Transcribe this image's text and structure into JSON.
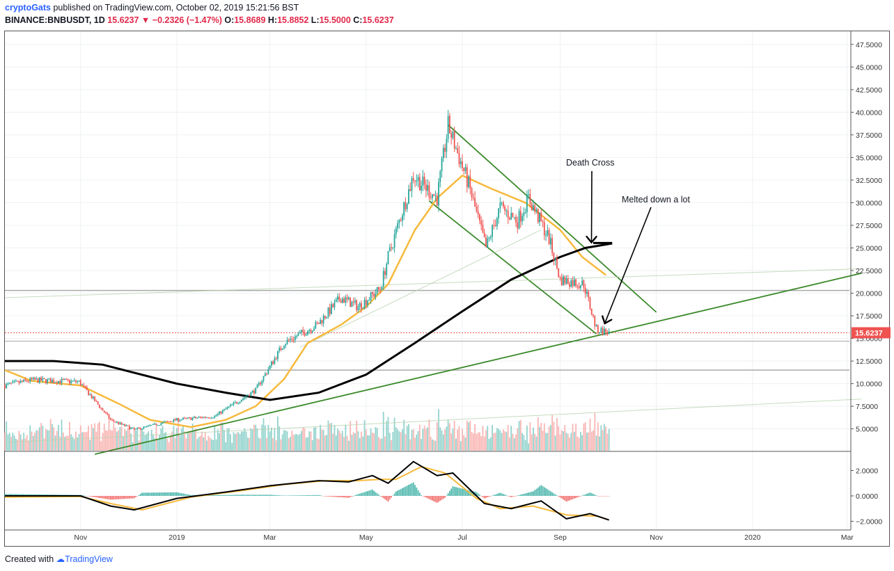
{
  "header": {
    "author": "cryptoGats",
    "published": "published on TradingView.com, October 02, 2019 15:21:56 BST",
    "symbol": "BINANCE:BNBUSDT, 1D",
    "last": "15.6237",
    "change": "−0.2326 (−1.47%)",
    "open_label": "O:",
    "open": "15.8689",
    "high_label": "H:",
    "high": "15.8852",
    "low_label": "L:",
    "low": "15.5000",
    "close_label": "C:",
    "close": "15.6237"
  },
  "footer": {
    "created_with": "Created with",
    "brand": "TradingView"
  },
  "colors": {
    "up": "#26a69a",
    "down": "#ef5350",
    "ma_fast": "#f6b93b",
    "ma_slow": "#000000",
    "trend": "#3a8a2a"
  },
  "chart_data": {
    "type": "candlestick",
    "price_axis": {
      "ticks": [
        5,
        7.5,
        10,
        12.5,
        15,
        17.5,
        20,
        22.5,
        25,
        27.5,
        30,
        32.5,
        35,
        37.5,
        40,
        42.5,
        45,
        47.5
      ],
      "labels": [
        "5.0000",
        "7.5000",
        "10.0000",
        "12.5000",
        "15.0000",
        "17.5000",
        "20.0000",
        "22.5000",
        "25.0000",
        "27.5000",
        "30.0000",
        "32.5000",
        "35.0000",
        "37.5000",
        "40.0000",
        "42.5000",
        "45.0000",
        "47.5000"
      ],
      "last_price_label": "15.6237"
    },
    "time_axis": {
      "labels": [
        "Nov",
        "2019",
        "Mar",
        "May",
        "Jul",
        "Sep",
        "Nov",
        "2020",
        "Mar"
      ]
    },
    "oscillator_axis": {
      "ticks": [
        2,
        0,
        -2
      ],
      "labels": [
        "2.0000",
        "0.0000",
        "−2.0000"
      ]
    },
    "close_keypoints": [
      [
        "2018-09-14",
        9.8
      ],
      [
        "2018-10-01",
        10.4
      ],
      [
        "2018-10-31",
        10.2
      ],
      [
        "2018-11-20",
        6.0
      ],
      [
        "2018-12-05",
        4.9
      ],
      [
        "2018-12-31",
        6.0
      ],
      [
        "2019-01-25",
        6.4
      ],
      [
        "2019-02-20",
        9.3
      ],
      [
        "2019-03-10",
        14.5
      ],
      [
        "2019-03-31",
        16.5
      ],
      [
        "2019-04-15",
        19.5
      ],
      [
        "2019-04-26",
        18.5
      ],
      [
        "2019-05-10",
        20.5
      ],
      [
        "2019-05-15",
        24.0
      ],
      [
        "2019-05-31",
        33.0
      ],
      [
        "2019-06-15",
        30.5
      ],
      [
        "2019-06-22",
        38.5
      ],
      [
        "2019-07-05",
        32.0
      ],
      [
        "2019-07-16",
        25.0
      ],
      [
        "2019-07-25",
        29.5
      ],
      [
        "2019-08-05",
        28.0
      ],
      [
        "2019-08-12",
        30.5
      ],
      [
        "2019-08-25",
        26.0
      ],
      [
        "2019-09-01",
        21.5
      ],
      [
        "2019-09-16",
        21.0
      ],
      [
        "2019-09-24",
        16.0
      ],
      [
        "2019-10-02",
        15.62
      ]
    ],
    "ma_fast_keypoints": [
      [
        "2018-09-14",
        11.5
      ],
      [
        "2018-10-01",
        10.3
      ],
      [
        "2018-11-01",
        9.8
      ],
      [
        "2018-11-25",
        7.8
      ],
      [
        "2018-12-15",
        6.0
      ],
      [
        "2019-01-10",
        5.2
      ],
      [
        "2019-02-01",
        6.0
      ],
      [
        "2019-02-20",
        7.5
      ],
      [
        "2019-03-10",
        10.5
      ],
      [
        "2019-03-25",
        14.5
      ],
      [
        "2019-04-15",
        16.5
      ],
      [
        "2019-05-01",
        18.5
      ],
      [
        "2019-05-15",
        21.0
      ],
      [
        "2019-06-01",
        27.0
      ],
      [
        "2019-06-15",
        30.5
      ],
      [
        "2019-07-01",
        33.0
      ],
      [
        "2019-07-20",
        31.5
      ],
      [
        "2019-08-10",
        30.0
      ],
      [
        "2019-09-01",
        27.0
      ],
      [
        "2019-09-15",
        24.0
      ],
      [
        "2019-09-30",
        22.0
      ]
    ],
    "ma_slow_keypoints": [
      [
        "2018-09-14",
        12.5
      ],
      [
        "2018-10-15",
        12.5
      ],
      [
        "2018-11-15",
        12.1
      ],
      [
        "2019-01-01",
        10.0
      ],
      [
        "2019-02-01",
        9.0
      ],
      [
        "2019-03-01",
        8.2
      ],
      [
        "2019-04-01",
        9.0
      ],
      [
        "2019-05-01",
        11.0
      ],
      [
        "2019-06-01",
        14.5
      ],
      [
        "2019-07-01",
        18.0
      ],
      [
        "2019-08-01",
        21.5
      ],
      [
        "2019-09-01",
        24.0
      ],
      [
        "2019-09-17",
        25.0
      ],
      [
        "2019-10-04",
        25.5
      ]
    ],
    "oscillator": {
      "line_keypoints": [
        [
          "2018-09-14",
          0.0
        ],
        [
          "2018-11-01",
          0.0
        ],
        [
          "2018-11-20",
          -0.8
        ],
        [
          "2018-12-05",
          -1.1
        ],
        [
          "2019-01-01",
          -0.2
        ],
        [
          "2019-02-01",
          0.3
        ],
        [
          "2019-03-01",
          0.8
        ],
        [
          "2019-04-01",
          1.2
        ],
        [
          "2019-04-20",
          1.1
        ],
        [
          "2019-05-05",
          1.6
        ],
        [
          "2019-05-15",
          1.0
        ],
        [
          "2019-05-31",
          2.7
        ],
        [
          "2019-06-15",
          1.6
        ],
        [
          "2019-06-25",
          1.8
        ],
        [
          "2019-07-15",
          -0.6
        ],
        [
          "2019-08-01",
          -1.0
        ],
        [
          "2019-08-20",
          -0.4
        ],
        [
          "2019-09-05",
          -1.8
        ],
        [
          "2019-09-20",
          -1.4
        ],
        [
          "2019-10-02",
          -1.9
        ]
      ],
      "signal_keypoints": [
        [
          "2018-09-14",
          -0.1
        ],
        [
          "2018-11-01",
          -0.05
        ],
        [
          "2018-11-20",
          -0.6
        ],
        [
          "2018-12-10",
          -1.1
        ],
        [
          "2019-01-10",
          -0.1
        ],
        [
          "2019-02-10",
          0.4
        ],
        [
          "2019-03-10",
          0.9
        ],
        [
          "2019-04-05",
          1.2
        ],
        [
          "2019-04-25",
          1.2
        ],
        [
          "2019-05-10",
          1.3
        ],
        [
          "2019-05-20",
          1.3
        ],
        [
          "2019-06-05",
          2.3
        ],
        [
          "2019-06-20",
          1.8
        ],
        [
          "2019-07-10",
          -0.2
        ],
        [
          "2019-07-25",
          -1.0
        ],
        [
          "2019-08-15",
          -0.8
        ],
        [
          "2019-09-05",
          -1.5
        ],
        [
          "2019-09-25",
          -1.6
        ],
        [
          "2019-10-02",
          -1.9
        ]
      ]
    },
    "annotations": [
      {
        "text": "Death Cross",
        "points_to": [
          "2019-09-20",
          25.3
        ]
      },
      {
        "text": "Melted down a lot",
        "points_to": [
          "2019-09-28",
          16.2
        ]
      }
    ],
    "grid": true
  }
}
